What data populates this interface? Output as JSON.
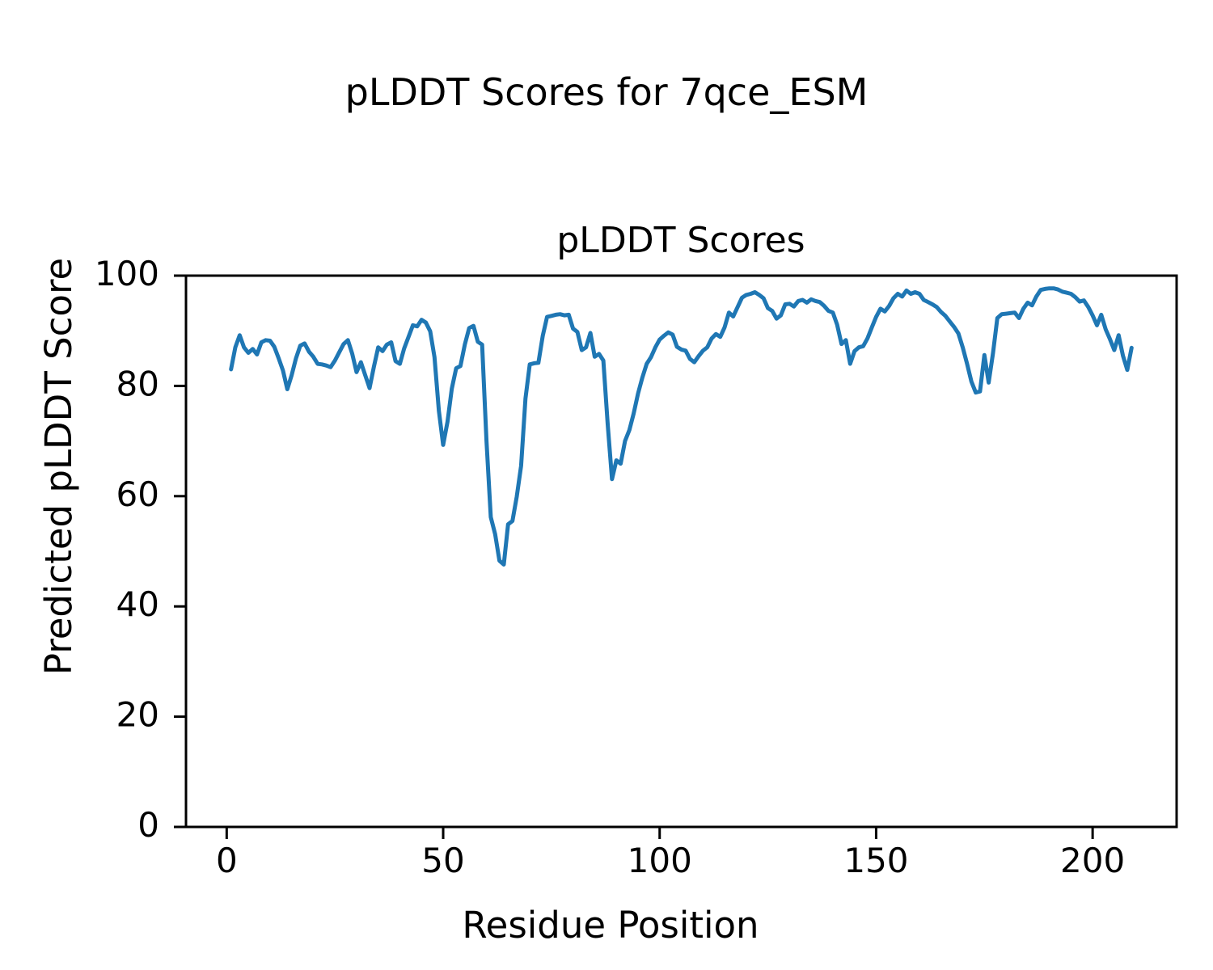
{
  "figure": {
    "suptitle": "pLDDT Scores for 7qce_ESM",
    "axes_title": "pLDDT Scores",
    "xlabel": "Residue Position",
    "ylabel": "Predicted pLDDT Score"
  },
  "chart_data": {
    "type": "line",
    "title": "pLDDT Scores",
    "suptitle": "pLDDT Scores for 7qce_ESM",
    "xlabel": "Residue Position",
    "ylabel": "Predicted pLDDT Score",
    "x_tick_labels": [
      "0",
      "50",
      "100",
      "150",
      "200"
    ],
    "x_ticks": [
      0,
      50,
      100,
      150,
      200
    ],
    "y_tick_labels": [
      "0",
      "20",
      "40",
      "60",
      "80",
      "100"
    ],
    "y_ticks": [
      0,
      20,
      40,
      60,
      80,
      100
    ],
    "xlim": [
      -9.4,
      219.4
    ],
    "ylim": [
      0,
      100
    ],
    "grid": false,
    "legend": false,
    "line_color": "#1f77b4",
    "series": [
      {
        "name": "pLDDT",
        "x_start": 1,
        "x_step": 1,
        "values": [
          83.0,
          87.0,
          89.2,
          87.0,
          86.0,
          86.7,
          85.7,
          87.9,
          88.3,
          88.2,
          87.1,
          85.0,
          82.8,
          79.4,
          81.9,
          85.0,
          87.3,
          87.7,
          86.2,
          85.3,
          84.0,
          83.9,
          83.7,
          83.4,
          84.6,
          86.1,
          87.6,
          88.3,
          85.8,
          82.5,
          84.3,
          81.9,
          79.6,
          83.5,
          87.0,
          86.3,
          87.5,
          87.9,
          84.5,
          84.0,
          86.8,
          88.9,
          91.0,
          90.8,
          92.0,
          91.5,
          89.9,
          85.2,
          75.5,
          69.3,
          73.5,
          79.5,
          83.2,
          83.6,
          87.5,
          90.5,
          90.9,
          88.0,
          87.5,
          70.0,
          56.2,
          53.1,
          48.3,
          47.6,
          54.9,
          55.5,
          59.9,
          65.5,
          77.7,
          83.9,
          84.1,
          84.2,
          89.1,
          92.5,
          92.7,
          92.9,
          93.0,
          92.8,
          92.9,
          90.4,
          89.8,
          86.5,
          87.0,
          89.6,
          85.3,
          85.8,
          84.6,
          73.0,
          63.1,
          66.5,
          65.9,
          70.0,
          72.0,
          75.0,
          78.6,
          81.5,
          84.0,
          85.2,
          87.0,
          88.4,
          89.1,
          89.7,
          89.3,
          87.1,
          86.6,
          86.4,
          84.9,
          84.3,
          85.4,
          86.4,
          87.0,
          88.6,
          89.4,
          88.9,
          90.6,
          93.3,
          92.6,
          94.3,
          96.0,
          96.5,
          96.7,
          97.0,
          96.5,
          95.9,
          94.1,
          93.6,
          92.2,
          92.8,
          94.8,
          94.9,
          94.4,
          95.4,
          95.6,
          95.1,
          95.7,
          95.4,
          95.2,
          94.5,
          93.6,
          93.3,
          91.1,
          87.6,
          88.3,
          84.0,
          86.3,
          87.0,
          87.2,
          88.6,
          90.6,
          92.5,
          94.0,
          93.5,
          94.5,
          95.9,
          96.7,
          96.2,
          97.3,
          96.7,
          97.0,
          96.7,
          95.6,
          95.2,
          94.8,
          94.3,
          93.4,
          92.7,
          91.7,
          90.7,
          89.5,
          87.0,
          84.0,
          80.8,
          78.8,
          79.0,
          85.6,
          80.6,
          86.0,
          92.3,
          93.0,
          93.1,
          93.2,
          93.3,
          92.3,
          94.0,
          95.1,
          94.6,
          96.2,
          97.4,
          97.6,
          97.7,
          97.7,
          97.5,
          97.1,
          96.9,
          96.7,
          96.1,
          95.3,
          95.5,
          94.3,
          92.8,
          91.0,
          92.9,
          90.3,
          88.5,
          86.5,
          89.2,
          85.5,
          82.9,
          86.9
        ]
      }
    ]
  }
}
